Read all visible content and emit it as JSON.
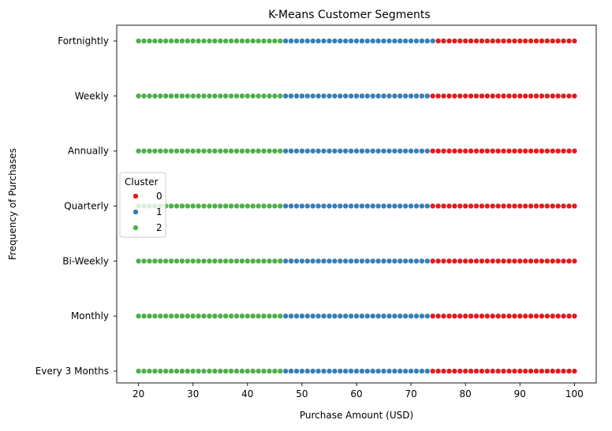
{
  "chart_data": {
    "type": "scatter",
    "title": "K-Means Customer Segments",
    "xlabel": "Purchase Amount (USD)",
    "ylabel": "Frequency of Purchases",
    "xlim": [
      16,
      104
    ],
    "x_ticks": [
      20,
      30,
      40,
      50,
      60,
      70,
      80,
      90,
      100
    ],
    "categories": [
      "Every 3 Months",
      "Monthly",
      "Bi-Weekly",
      "Quarterly",
      "Annually",
      "Weekly",
      "Fortnightly"
    ],
    "grid": false,
    "legend": {
      "title": "Cluster",
      "placement": "center-left",
      "entries": [
        {
          "label": "0",
          "color": "#e41a1c"
        },
        {
          "label": "1",
          "color": "#377eb8"
        },
        {
          "label": "2",
          "color": "#4daf4a"
        }
      ]
    },
    "x_range": [
      20,
      100
    ],
    "series": [
      {
        "name": "0",
        "color": "#e41a1c",
        "x_range_per_category": {
          "Every 3 Months": [
            74,
            100
          ],
          "Monthly": [
            74,
            100
          ],
          "Bi-Weekly": [
            74,
            100
          ],
          "Quarterly": [
            74,
            100
          ],
          "Annually": [
            74,
            100
          ],
          "Weekly": [
            74,
            100
          ],
          "Fortnightly": [
            75,
            100
          ]
        }
      },
      {
        "name": "1",
        "color": "#377eb8",
        "x_range_per_category": {
          "Every 3 Months": [
            47,
            73
          ],
          "Monthly": [
            47,
            73
          ],
          "Bi-Weekly": [
            47,
            73
          ],
          "Quarterly": [
            47,
            73
          ],
          "Annually": [
            47,
            73
          ],
          "Weekly": [
            47,
            73
          ],
          "Fortnightly": [
            47,
            74
          ]
        }
      },
      {
        "name": "2",
        "color": "#4daf4a",
        "x_range_per_category": {
          "Every 3 Months": [
            20,
            46
          ],
          "Monthly": [
            20,
            46
          ],
          "Bi-Weekly": [
            20,
            46
          ],
          "Quarterly": [
            20,
            46
          ],
          "Annually": [
            20,
            46
          ],
          "Weekly": [
            20,
            46
          ],
          "Fortnightly": [
            20,
            46
          ]
        }
      }
    ]
  }
}
